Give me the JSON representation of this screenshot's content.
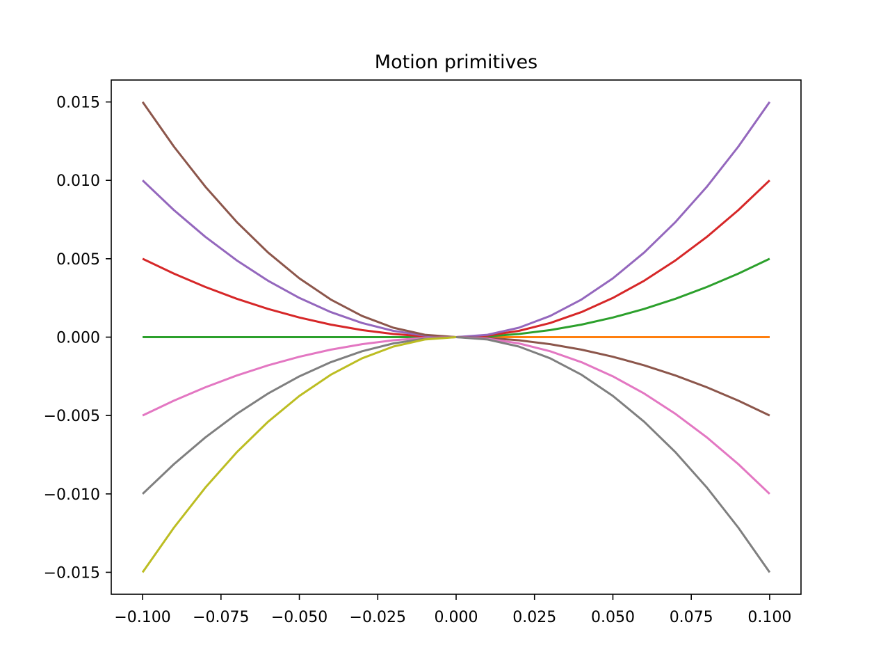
{
  "chart_data": {
    "type": "line",
    "title": "Motion primitives",
    "xlabel": "",
    "ylabel": "",
    "xlim": [
      -0.11,
      0.11
    ],
    "ylim": [
      -0.0164,
      0.0164
    ],
    "grid": false,
    "legend": "none",
    "xticks": [
      -0.1,
      -0.075,
      -0.05,
      -0.025,
      0.0,
      0.025,
      0.05,
      0.075,
      0.1
    ],
    "xtick_labels": [
      "−0.100",
      "−0.075",
      "−0.050",
      "−0.025",
      "0.000",
      "0.025",
      "0.050",
      "0.075",
      "0.100"
    ],
    "yticks": [
      -0.015,
      -0.01,
      -0.005,
      0.0,
      0.005,
      0.01,
      0.015
    ],
    "ytick_labels": [
      "−0.015",
      "−0.010",
      "−0.005",
      "0.000",
      "0.005",
      "0.010",
      "0.015"
    ],
    "x_range": [
      -0.1,
      0.1
    ],
    "x_step": 0.01,
    "series": [
      {
        "side": "right",
        "k": 0.0,
        "color": "#1f77b4"
      },
      {
        "side": "right",
        "k": 0.0,
        "color": "#ff7f0e"
      },
      {
        "side": "right",
        "k": 0.5,
        "color": "#2ca02c"
      },
      {
        "side": "right",
        "k": 1.0,
        "color": "#d62728"
      },
      {
        "side": "right",
        "k": 1.5,
        "color": "#9467bd"
      },
      {
        "side": "right",
        "k": -0.5,
        "color": "#8c564b"
      },
      {
        "side": "right",
        "k": -1.0,
        "color": "#e377c2"
      },
      {
        "side": "right",
        "k": -1.5,
        "color": "#7f7f7f"
      },
      {
        "side": "left",
        "k": 0.0,
        "color": "#2ca02c"
      },
      {
        "side": "left",
        "k": 0.5,
        "color": "#d62728"
      },
      {
        "side": "left",
        "k": 1.0,
        "color": "#9467bd"
      },
      {
        "side": "left",
        "k": 1.5,
        "color": "#8c564b"
      },
      {
        "side": "left",
        "k": -0.5,
        "color": "#e377c2"
      },
      {
        "side": "left",
        "k": -1.0,
        "color": "#7f7f7f"
      },
      {
        "side": "left",
        "k": -1.5,
        "color": "#bcbd22"
      }
    ]
  }
}
